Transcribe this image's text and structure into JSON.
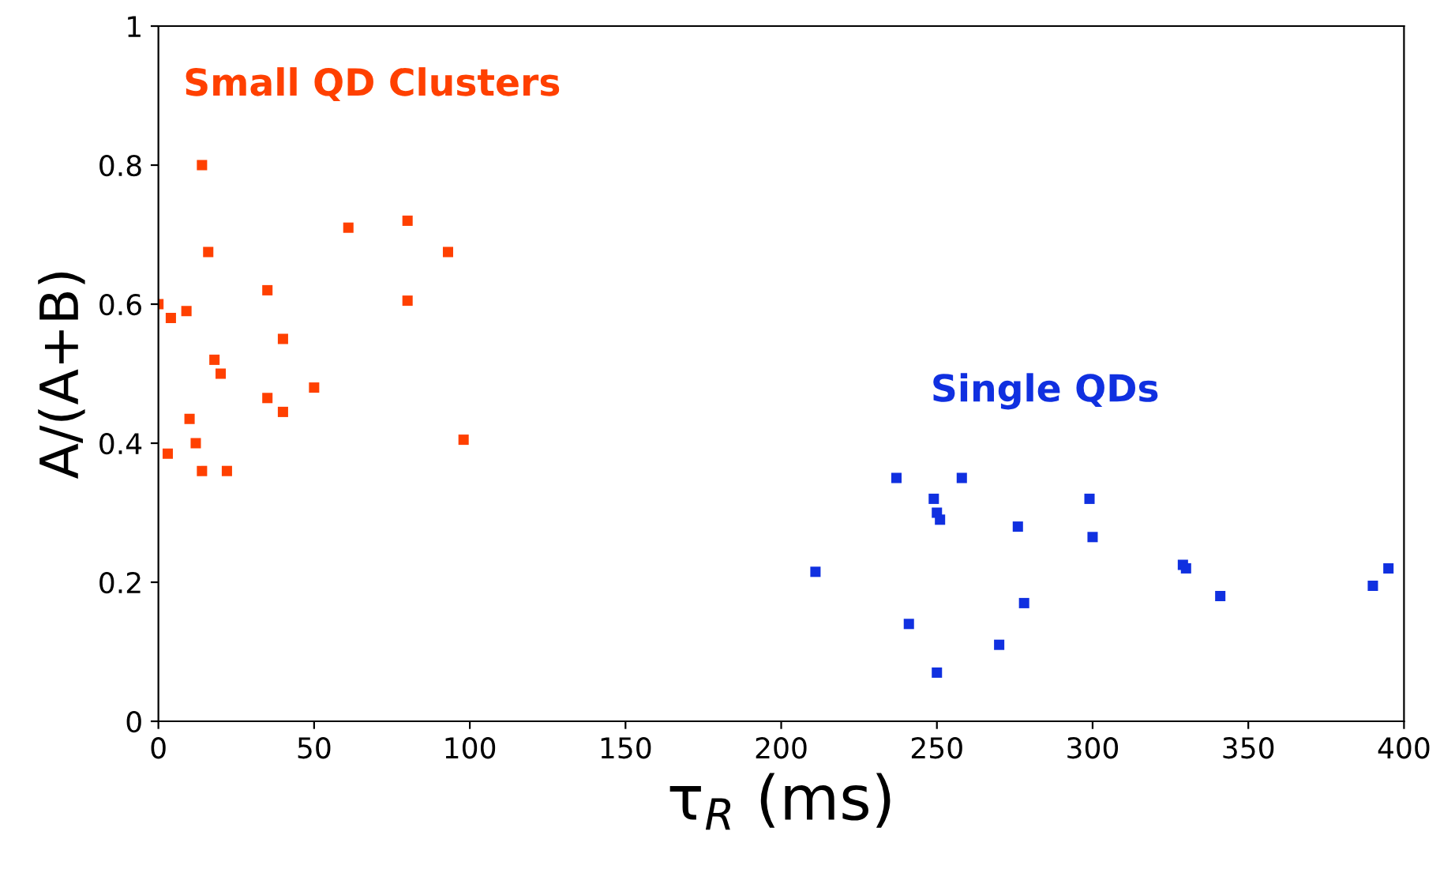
{
  "chart_data": {
    "type": "scatter",
    "xlabel": "τ$_{R}$ (ms)",
    "ylabel": "A/(A+B)",
    "xlim": [
      0,
      400
    ],
    "xticks": [
      0,
      50,
      100,
      150,
      200,
      250,
      300,
      350,
      400
    ],
    "ylim": [
      0,
      1
    ],
    "yticks": [
      0,
      0.2,
      0.4,
      0.6,
      0.8,
      1
    ],
    "grid": false,
    "legend": false,
    "marker": "square",
    "series": [
      {
        "name": "Small QD Clusters",
        "color": "#ff4000",
        "x": [
          0,
          4,
          3,
          9,
          10,
          12,
          14,
          14,
          16,
          18,
          20,
          22,
          35,
          35,
          40,
          40,
          50,
          61,
          80,
          80,
          93,
          98
        ],
        "values": [
          0.6,
          0.58,
          0.385,
          0.59,
          0.435,
          0.4,
          0.36,
          0.8,
          0.675,
          0.52,
          0.5,
          0.36,
          0.62,
          0.465,
          0.55,
          0.445,
          0.48,
          0.71,
          0.72,
          0.605,
          0.675,
          0.405
        ]
      },
      {
        "name": "Single QDs",
        "color": "#1030e0",
        "x": [
          211,
          237,
          241,
          249,
          250,
          251,
          250,
          258,
          270,
          276,
          278,
          299,
          300,
          329,
          330,
          341,
          390,
          395
        ],
        "values": [
          0.215,
          0.35,
          0.14,
          0.32,
          0.3,
          0.29,
          0.07,
          0.35,
          0.11,
          0.28,
          0.17,
          0.32,
          0.265,
          0.225,
          0.22,
          0.18,
          0.195,
          0.22
        ]
      }
    ]
  }
}
